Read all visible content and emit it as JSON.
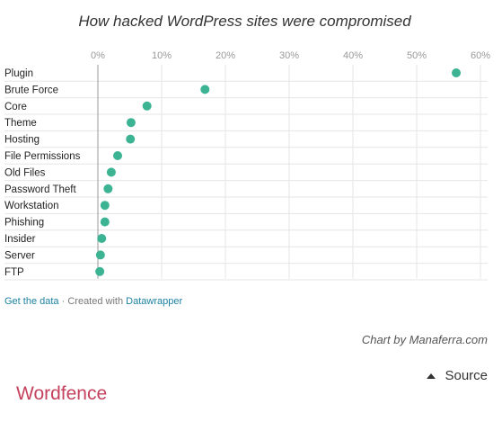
{
  "chart_data": {
    "type": "scatter",
    "title": "How hacked WordPress sites were compromised",
    "categories": [
      "Plugin",
      "Brute Force",
      "Core",
      "Theme",
      "Hosting",
      "File Permissions",
      "Old Files",
      "Password Theft",
      "Workstation",
      "Phishing",
      "Insider",
      "Server",
      "FTP"
    ],
    "values": [
      56.2,
      16.8,
      7.7,
      5.2,
      5.1,
      3.1,
      2.1,
      1.6,
      1.1,
      1.1,
      0.6,
      0.4,
      0.3
    ],
    "x_ticks": [
      "0%",
      "10%",
      "20%",
      "30%",
      "40%",
      "50%",
      "60%"
    ],
    "x_tick_values": [
      0,
      10,
      20,
      30,
      40,
      50,
      60
    ],
    "xlim": [
      0,
      60
    ],
    "grid": true,
    "point_color": "#3cb494"
  },
  "footer": {
    "get_data": "Get the data",
    "sep": "·",
    "created_with": "Created with",
    "tool": "Datawrapper"
  },
  "credit": "Chart by Manaferra.com",
  "source_label": "Source",
  "brand": "Wordfence"
}
